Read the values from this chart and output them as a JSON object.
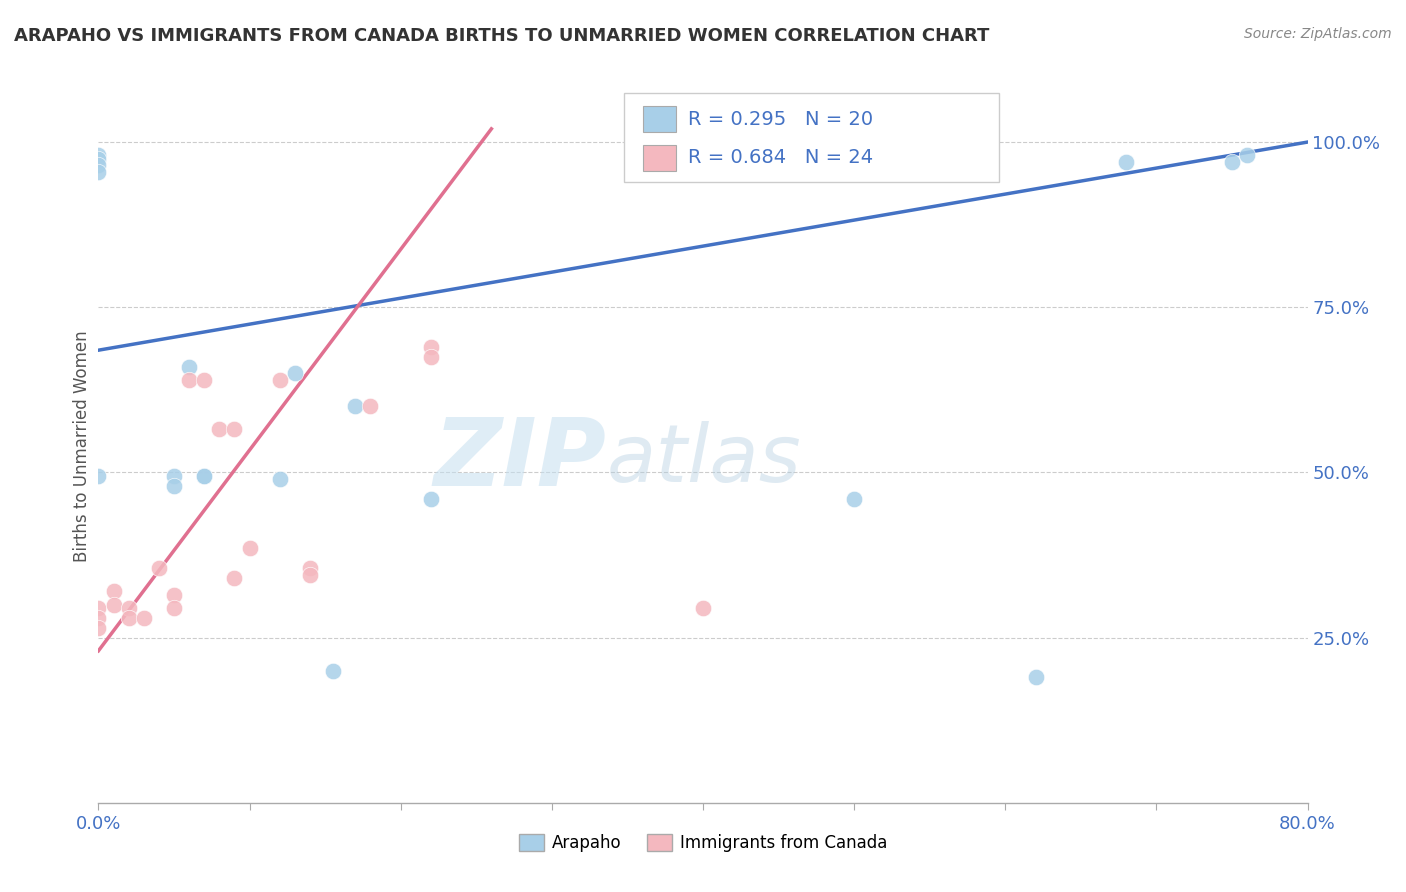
{
  "title": "ARAPAHO VS IMMIGRANTS FROM CANADA BIRTHS TO UNMARRIED WOMEN CORRELATION CHART",
  "source": "Source: ZipAtlas.com",
  "ylabel": "Births to Unmarried Women",
  "xmin": 0.0,
  "xmax": 0.8,
  "ymin": 0.0,
  "ymax": 1.08,
  "xticks": [
    0.0,
    0.1,
    0.2,
    0.3,
    0.4,
    0.5,
    0.6,
    0.7,
    0.8
  ],
  "yticks": [
    0.25,
    0.5,
    0.75,
    1.0
  ],
  "ytick_labels": [
    "25.0%",
    "50.0%",
    "75.0%",
    "100.0%"
  ],
  "legend_labels": [
    "Arapaho",
    "Immigrants from Canada"
  ],
  "arapaho_R": 0.295,
  "arapaho_N": 20,
  "canada_R": 0.684,
  "canada_N": 24,
  "arapaho_color": "#a8cfe8",
  "canada_color": "#f4b8bf",
  "arapaho_line_color": "#4472c4",
  "canada_line_color": "#e07090",
  "watermark_zip": "ZIP",
  "watermark_atlas": "atlas",
  "arapaho_x": [
    0.0,
    0.0,
    0.0,
    0.0,
    0.0,
    0.05,
    0.05,
    0.06,
    0.07,
    0.07,
    0.12,
    0.13,
    0.155,
    0.17,
    0.22,
    0.5,
    0.62,
    0.68,
    0.75,
    0.76
  ],
  "arapaho_y": [
    0.98,
    0.975,
    0.965,
    0.955,
    0.495,
    0.495,
    0.48,
    0.66,
    0.495,
    0.495,
    0.49,
    0.65,
    0.2,
    0.6,
    0.46,
    0.46,
    0.19,
    0.97,
    0.97,
    0.98
  ],
  "canada_x": [
    0.0,
    0.0,
    0.0,
    0.01,
    0.01,
    0.02,
    0.02,
    0.03,
    0.04,
    0.05,
    0.05,
    0.06,
    0.07,
    0.08,
    0.09,
    0.09,
    0.1,
    0.12,
    0.14,
    0.14,
    0.18,
    0.22,
    0.22,
    0.4
  ],
  "canada_y": [
    0.295,
    0.28,
    0.265,
    0.32,
    0.3,
    0.295,
    0.28,
    0.28,
    0.355,
    0.315,
    0.295,
    0.64,
    0.64,
    0.565,
    0.565,
    0.34,
    0.385,
    0.64,
    0.355,
    0.345,
    0.6,
    0.69,
    0.675,
    0.295
  ],
  "arapaho_line_x": [
    0.0,
    0.8
  ],
  "arapaho_line_y": [
    0.685,
    1.0
  ],
  "canada_line_x": [
    0.0,
    0.26
  ],
  "canada_line_y": [
    0.23,
    1.02
  ]
}
